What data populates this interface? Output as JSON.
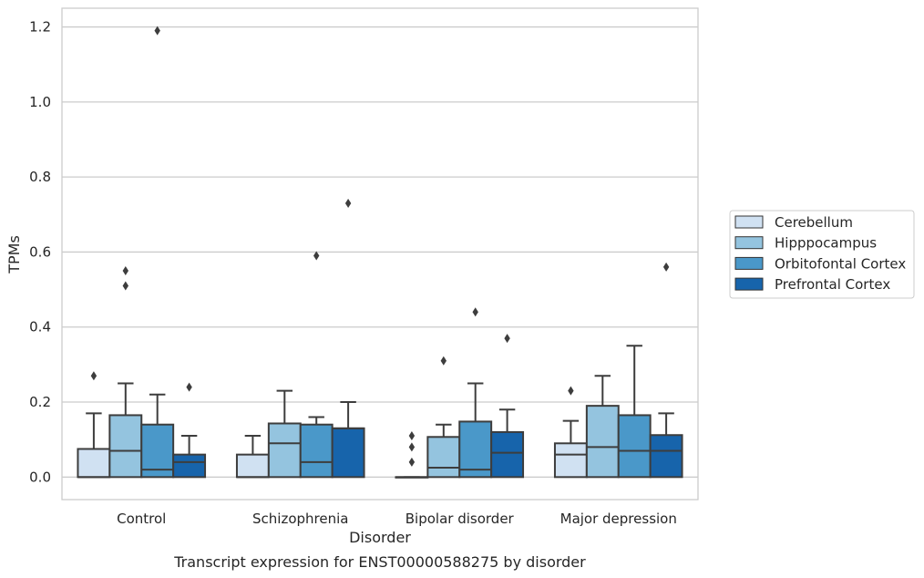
{
  "chart_data": {
    "type": "box",
    "title": "",
    "caption": "Transcript expression for ENST00000588275 by disorder",
    "xlabel": "Disorder",
    "ylabel": "TPMs",
    "ylim": [
      -0.06,
      1.25
    ],
    "yticks": [
      0.0,
      0.2,
      0.4,
      0.6,
      0.8,
      1.0,
      1.2
    ],
    "ytick_labels": [
      "0.0",
      "0.2",
      "0.4",
      "0.6",
      "0.8",
      "1.0",
      "1.2"
    ],
    "grid": "horizontal",
    "legend_position": "right",
    "categories": [
      "Control",
      "Schizophrenia",
      "Bipolar disorder",
      "Major depression"
    ],
    "series": [
      {
        "name": "Cerebellum",
        "color": "#d0e1f2",
        "boxes": [
          {
            "q1": 0.0,
            "median": 0.0,
            "q3": 0.075,
            "whisker_low": 0.0,
            "whisker_high": 0.17,
            "outliers": [
              0.27
            ]
          },
          {
            "q1": 0.0,
            "median": 0.0,
            "q3": 0.06,
            "whisker_low": 0.0,
            "whisker_high": 0.11,
            "outliers": []
          },
          {
            "q1": 0.0,
            "median": 0.0,
            "q3": 0.0,
            "whisker_low": 0.0,
            "whisker_high": 0.0,
            "outliers": [
              0.04,
              0.08,
              0.11
            ]
          },
          {
            "q1": 0.0,
            "median": 0.06,
            "q3": 0.09,
            "whisker_low": 0.0,
            "whisker_high": 0.15,
            "outliers": [
              0.23
            ]
          }
        ]
      },
      {
        "name": "Hipppocampus",
        "color": "#94c4df",
        "boxes": [
          {
            "q1": 0.0,
            "median": 0.07,
            "q3": 0.165,
            "whisker_low": 0.0,
            "whisker_high": 0.25,
            "outliers": [
              0.51,
              0.55
            ]
          },
          {
            "q1": 0.0,
            "median": 0.09,
            "q3": 0.143,
            "whisker_low": 0.0,
            "whisker_high": 0.23,
            "outliers": []
          },
          {
            "q1": 0.0,
            "median": 0.025,
            "q3": 0.107,
            "whisker_low": 0.0,
            "whisker_high": 0.14,
            "outliers": [
              0.31
            ]
          },
          {
            "q1": 0.0,
            "median": 0.08,
            "q3": 0.19,
            "whisker_low": 0.0,
            "whisker_high": 0.27,
            "outliers": []
          }
        ]
      },
      {
        "name": "Orbitofontal Cortex",
        "color": "#4a98c9",
        "boxes": [
          {
            "q1": 0.0,
            "median": 0.02,
            "q3": 0.14,
            "whisker_low": 0.0,
            "whisker_high": 0.22,
            "outliers": [
              1.19
            ]
          },
          {
            "q1": 0.0,
            "median": 0.04,
            "q3": 0.14,
            "whisker_low": 0.0,
            "whisker_high": 0.16,
            "outliers": [
              0.59
            ]
          },
          {
            "q1": 0.0,
            "median": 0.02,
            "q3": 0.148,
            "whisker_low": 0.0,
            "whisker_high": 0.25,
            "outliers": [
              0.44
            ]
          },
          {
            "q1": 0.0,
            "median": 0.07,
            "q3": 0.165,
            "whisker_low": 0.0,
            "whisker_high": 0.35,
            "outliers": []
          }
        ]
      },
      {
        "name": "Prefrontal Cortex",
        "color": "#1764ab",
        "boxes": [
          {
            "q1": 0.0,
            "median": 0.04,
            "q3": 0.06,
            "whisker_low": 0.0,
            "whisker_high": 0.11,
            "outliers": [
              0.24
            ]
          },
          {
            "q1": 0.0,
            "median": 0.13,
            "q3": 0.13,
            "whisker_low": 0.0,
            "whisker_high": 0.2,
            "outliers": [
              0.73
            ]
          },
          {
            "q1": 0.0,
            "median": 0.065,
            "q3": 0.12,
            "whisker_low": 0.0,
            "whisker_high": 0.18,
            "outliers": [
              0.37
            ]
          },
          {
            "q1": 0.0,
            "median": 0.07,
            "q3": 0.112,
            "whisker_low": 0.0,
            "whisker_high": 0.17,
            "outliers": [
              0.56
            ]
          }
        ]
      }
    ]
  }
}
